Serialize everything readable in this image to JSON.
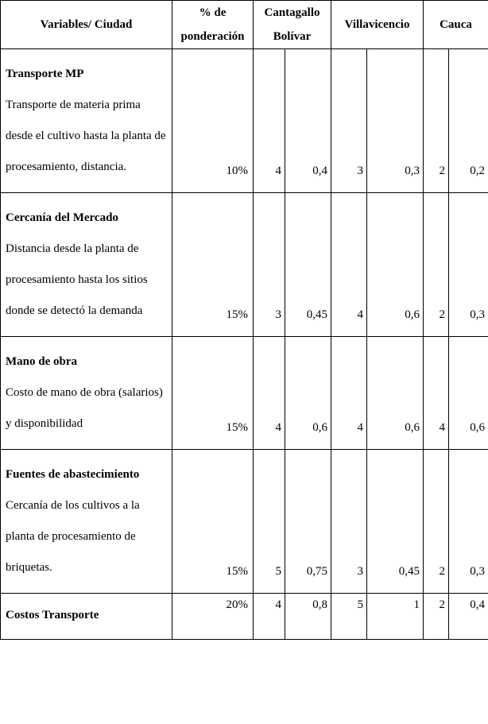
{
  "headers": {
    "variable": "Variables/ Ciudad",
    "ponderacion_line1": "% de",
    "ponderacion_line2": "ponderación",
    "city1_line1": "Cantagallo",
    "city1_line2": "Bolívar",
    "city2": "Villavicencio",
    "city3": "Cauca"
  },
  "rows": [
    {
      "title": "Transporte MP",
      "desc": "Transporte de materia prima desde el cultivo hasta la planta de procesamiento, distancia.",
      "pond": "10%",
      "c1_score": "4",
      "c1_weighted": "0,4",
      "c2_score": "3",
      "c2_weighted": "0,3",
      "c3_score": "2",
      "c3_weighted": "0,2"
    },
    {
      "title": "Cercanía del Mercado",
      "desc": "Distancia desde la planta de procesamiento hasta los sitios donde se detectó la demanda",
      "pond": "15%",
      "c1_score": "3",
      "c1_weighted": "0,45",
      "c2_score": "4",
      "c2_weighted": "0,6",
      "c3_score": "2",
      "c3_weighted": "0,3"
    },
    {
      "title": "Mano de obra",
      "desc": "Costo de mano de obra (salarios) y disponibilidad",
      "pond": "15%",
      "c1_score": "4",
      "c1_weighted": "0,6",
      "c2_score": "4",
      "c2_weighted": "0,6",
      "c3_score": "4",
      "c3_weighted": "0,6"
    },
    {
      "title": "Fuentes de abastecimiento",
      "desc": "Cercanía de los cultivos a la planta de procesamiento de briquetas.",
      "pond": "15%",
      "c1_score": "5",
      "c1_weighted": "0,75",
      "c2_score": "3",
      "c2_weighted": "0,45",
      "c3_score": "2",
      "c3_weighted": "0,3"
    },
    {
      "title": "Costos Transporte",
      "desc": "",
      "pond": "20%",
      "c1_score": "4",
      "c1_weighted": "0,8",
      "c2_score": "5",
      "c2_weighted": "1",
      "c3_score": "2",
      "c3_weighted": "0,4"
    }
  ],
  "style": {
    "font_family": "Times New Roman",
    "font_size_pt": 12,
    "border_color": "#000000",
    "background": "#ffffff",
    "text_color": "#000000"
  }
}
